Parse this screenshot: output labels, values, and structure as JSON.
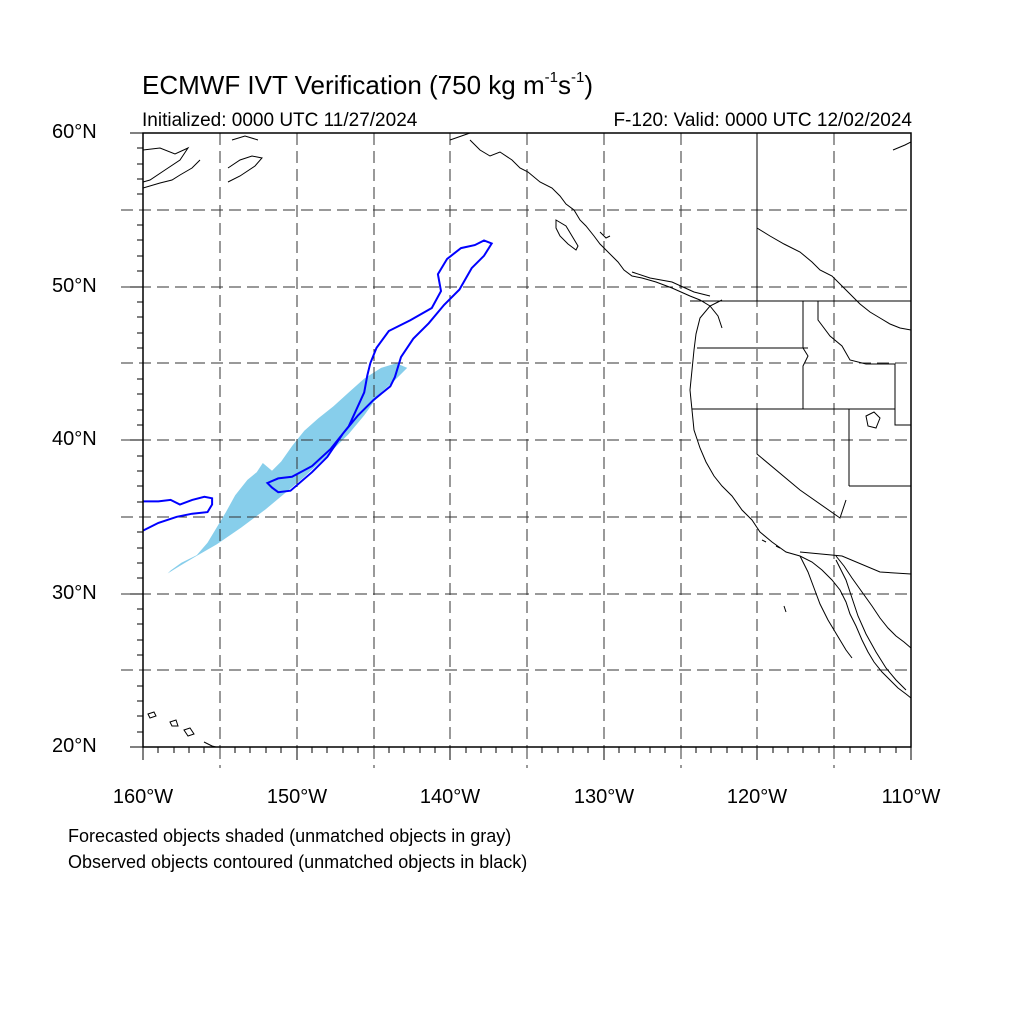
{
  "title": {
    "prefix": "ECMWF IVT Verification (750 kg m",
    "sup1": "-1",
    "mid": "s",
    "sup2": "-1",
    "suffix": ")"
  },
  "initialized": "Initialized: 0000 UTC 11/27/2024",
  "valid": "F-120: Valid: 0000 UTC 12/02/2024",
  "lat_labels": [
    "60°N",
    "50°N",
    "40°N",
    "30°N",
    "20°N"
  ],
  "lon_labels": [
    "160°W",
    "150°W",
    "140°W",
    "130°W",
    "120°W",
    "110°W"
  ],
  "notes": [
    "Forecasted objects shaded (unmatched objects in gray)",
    "Observed objects contoured (unmatched objects in black)"
  ],
  "map_extent": {
    "lon_min": -160,
    "lon_max": -110,
    "lat_min": 20,
    "lat_max": 60
  },
  "colors": {
    "forecast_fill": "#87ceeb",
    "observed_contour": "#0000ff"
  },
  "forecast_object": [
    [
      -158.2,
      31.5
    ],
    [
      -157.5,
      32.0
    ],
    [
      -156.5,
      32.5
    ],
    [
      -155.8,
      33.3
    ],
    [
      -155.2,
      34.3
    ],
    [
      -154.6,
      35.3
    ],
    [
      -154.0,
      36.4
    ],
    [
      -153.2,
      37.4
    ],
    [
      -152.6,
      37.9
    ],
    [
      -152.2,
      38.5
    ],
    [
      -151.6,
      38.0
    ],
    [
      -151.0,
      38.6
    ],
    [
      -150.3,
      39.6
    ],
    [
      -149.5,
      40.6
    ],
    [
      -148.6,
      41.4
    ],
    [
      -147.6,
      42.2
    ],
    [
      -146.6,
      43.1
    ],
    [
      -145.6,
      44.0
    ],
    [
      -144.5,
      44.7
    ],
    [
      -143.5,
      45.0
    ],
    [
      -142.8,
      44.7
    ],
    [
      -143.6,
      43.9
    ],
    [
      -144.6,
      43.0
    ],
    [
      -145.6,
      41.6
    ],
    [
      -146.6,
      40.4
    ],
    [
      -148.2,
      38.8
    ],
    [
      -149.6,
      37.5
    ],
    [
      -150.8,
      36.5
    ],
    [
      -152.0,
      35.5
    ],
    [
      -153.6,
      34.3
    ],
    [
      -155.2,
      33.2
    ],
    [
      -156.6,
      32.4
    ],
    [
      -157.6,
      31.8
    ],
    [
      -158.4,
      31.3
    ]
  ],
  "observed_main": [
    [
      -151.9,
      37.2
    ],
    [
      -151.2,
      37.5
    ],
    [
      -150.3,
      37.6
    ],
    [
      -149.0,
      38.3
    ],
    [
      -147.8,
      39.4
    ],
    [
      -146.6,
      40.9
    ],
    [
      -145.6,
      43.1
    ],
    [
      -145.4,
      44.2
    ],
    [
      -145.2,
      45.0
    ],
    [
      -144.8,
      46.0
    ],
    [
      -144.0,
      47.1
    ],
    [
      -142.6,
      47.8
    ],
    [
      -141.2,
      48.6
    ],
    [
      -140.6,
      49.7
    ],
    [
      -140.8,
      50.8
    ],
    [
      -140.2,
      51.8
    ],
    [
      -139.3,
      52.5
    ],
    [
      -138.4,
      52.7
    ],
    [
      -137.8,
      53.0
    ],
    [
      -137.3,
      52.8
    ],
    [
      -137.8,
      52.0
    ],
    [
      -138.6,
      51.2
    ],
    [
      -139.4,
      49.8
    ],
    [
      -140.4,
      48.8
    ],
    [
      -141.4,
      47.6
    ],
    [
      -142.4,
      46.6
    ],
    [
      -143.2,
      45.4
    ],
    [
      -143.6,
      44.1
    ],
    [
      -143.9,
      43.5
    ],
    [
      -145.0,
      42.6
    ],
    [
      -146.0,
      41.6
    ],
    [
      -147.0,
      40.4
    ],
    [
      -148.0,
      38.9
    ],
    [
      -149.0,
      37.9
    ],
    [
      -150.4,
      36.7
    ],
    [
      -151.2,
      36.6
    ],
    [
      -151.6,
      36.9
    ],
    [
      -151.9,
      37.2
    ]
  ],
  "observed_west": [
    [
      -160.0,
      34.1
    ],
    [
      -159.0,
      34.6
    ],
    [
      -157.8,
      35.0
    ],
    [
      -156.8,
      35.2
    ],
    [
      -155.8,
      35.3
    ],
    [
      -155.5,
      35.8
    ],
    [
      -155.5,
      36.2
    ],
    [
      -156.0,
      36.3
    ],
    [
      -156.8,
      36.1
    ],
    [
      -157.6,
      35.8
    ],
    [
      -158.2,
      36.1
    ],
    [
      -159.0,
      36.0
    ],
    [
      -160.0,
      36.0
    ]
  ]
}
